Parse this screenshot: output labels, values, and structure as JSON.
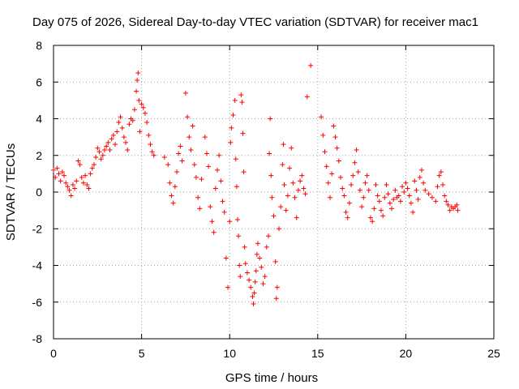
{
  "chart_data": {
    "type": "scatter",
    "title": "Day 075 of 2026, Sidereal Day-to-day VTEC variation (SDTVAR) for receiver mac1",
    "xlabel": "GPS time / hours",
    "ylabel": "SDTVAR / TECUs",
    "xlim": [
      0,
      25
    ],
    "ylim": [
      -8,
      8
    ],
    "xticks": [
      0,
      5,
      10,
      15,
      20,
      25
    ],
    "yticks": [
      -8,
      -6,
      -4,
      -2,
      0,
      2,
      4,
      6,
      8
    ],
    "grid": true,
    "marker": "+",
    "color": "#ff0000",
    "series": [
      {
        "name": "SDTVAR",
        "points": [
          [
            0.0,
            1.2
          ],
          [
            0.1,
            0.8
          ],
          [
            0.2,
            1.3
          ],
          [
            0.3,
            1.0
          ],
          [
            0.4,
            0.6
          ],
          [
            0.5,
            1.1
          ],
          [
            0.6,
            0.9
          ],
          [
            0.7,
            0.5
          ],
          [
            0.8,
            0.3
          ],
          [
            0.9,
            0.1
          ],
          [
            1.0,
            -0.2
          ],
          [
            1.1,
            0.4
          ],
          [
            1.2,
            0.2
          ],
          [
            1.3,
            0.6
          ],
          [
            1.4,
            1.7
          ],
          [
            1.5,
            1.5
          ],
          [
            1.6,
            0.8
          ],
          [
            1.7,
            0.5
          ],
          [
            1.8,
            0.9
          ],
          [
            1.9,
            0.4
          ],
          [
            2.0,
            0.2
          ],
          [
            2.1,
            1.0
          ],
          [
            2.2,
            1.3
          ],
          [
            2.3,
            1.5
          ],
          [
            2.4,
            1.9
          ],
          [
            2.5,
            2.4
          ],
          [
            2.6,
            2.2
          ],
          [
            2.7,
            1.8
          ],
          [
            2.8,
            2.0
          ],
          [
            2.9,
            2.3
          ],
          [
            3.0,
            2.5
          ],
          [
            3.1,
            2.7
          ],
          [
            3.2,
            2.3
          ],
          [
            3.3,
            2.9
          ],
          [
            3.4,
            3.1
          ],
          [
            3.5,
            2.6
          ],
          [
            3.6,
            3.3
          ],
          [
            3.7,
            3.8
          ],
          [
            3.8,
            4.1
          ],
          [
            3.9,
            3.5
          ],
          [
            4.0,
            3.0
          ],
          [
            4.1,
            2.7
          ],
          [
            4.2,
            2.3
          ],
          [
            4.3,
            3.7
          ],
          [
            4.4,
            4.0
          ],
          [
            4.5,
            3.9
          ],
          [
            4.6,
            4.5
          ],
          [
            4.7,
            5.5
          ],
          [
            4.75,
            6.1
          ],
          [
            4.8,
            6.5
          ],
          [
            4.85,
            5.0
          ],
          [
            4.9,
            3.3
          ],
          [
            5.0,
            4.8
          ],
          [
            5.1,
            4.6
          ],
          [
            5.2,
            4.3
          ],
          [
            5.3,
            3.8
          ],
          [
            5.4,
            3.1
          ],
          [
            5.5,
            2.6
          ],
          [
            5.6,
            2.2
          ],
          [
            5.7,
            2.0
          ],
          [
            6.3,
            1.9
          ],
          [
            6.5,
            1.5
          ],
          [
            6.6,
            0.5
          ],
          [
            6.7,
            -0.2
          ],
          [
            6.8,
            -0.6
          ],
          [
            6.9,
            0.3
          ],
          [
            7.0,
            1.1
          ],
          [
            7.1,
            2.1
          ],
          [
            7.2,
            2.5
          ],
          [
            7.3,
            1.7
          ],
          [
            7.5,
            5.4
          ],
          [
            7.6,
            4.1
          ],
          [
            7.7,
            3.0
          ],
          [
            7.8,
            2.3
          ],
          [
            7.9,
            3.6
          ],
          [
            8.0,
            1.5
          ],
          [
            8.1,
            0.8
          ],
          [
            8.2,
            -0.3
          ],
          [
            8.3,
            -0.9
          ],
          [
            8.4,
            0.7
          ],
          [
            8.6,
            3.0
          ],
          [
            8.7,
            2.1
          ],
          [
            8.8,
            1.4
          ],
          [
            8.9,
            -0.8
          ],
          [
            9.0,
            -1.6
          ],
          [
            9.1,
            -2.2
          ],
          [
            9.2,
            0.2
          ],
          [
            9.3,
            1.2
          ],
          [
            9.4,
            2.0
          ],
          [
            9.5,
            0.6
          ],
          [
            9.6,
            -0.5
          ],
          [
            9.7,
            -1.1
          ],
          [
            9.8,
            -3.6
          ],
          [
            9.9,
            -5.2
          ],
          [
            10.0,
            -1.6
          ],
          [
            10.05,
            2.7
          ],
          [
            10.1,
            3.5
          ],
          [
            10.2,
            4.2
          ],
          [
            10.3,
            5.0
          ],
          [
            10.35,
            1.8
          ],
          [
            10.4,
            0.3
          ],
          [
            10.45,
            -1.5
          ],
          [
            10.5,
            -2.4
          ],
          [
            10.55,
            -4.0
          ],
          [
            10.6,
            -4.6
          ],
          [
            10.65,
            5.3
          ],
          [
            10.7,
            4.9
          ],
          [
            10.75,
            3.2
          ],
          [
            10.8,
            1.1
          ],
          [
            10.85,
            -3.0
          ],
          [
            10.9,
            -3.9
          ],
          [
            11.0,
            -4.4
          ],
          [
            11.1,
            -4.8
          ],
          [
            11.2,
            -5.2
          ],
          [
            11.3,
            -5.7
          ],
          [
            11.35,
            -6.1
          ],
          [
            11.4,
            -5.5
          ],
          [
            11.45,
            -4.9
          ],
          [
            11.5,
            -4.3
          ],
          [
            11.55,
            -3.4
          ],
          [
            11.6,
            -2.8
          ],
          [
            11.7,
            -3.6
          ],
          [
            11.8,
            -4.1
          ],
          [
            11.9,
            -5.0
          ],
          [
            12.0,
            -4.6
          ],
          [
            12.1,
            -3.0
          ],
          [
            12.2,
            -2.4
          ],
          [
            12.25,
            2.1
          ],
          [
            12.3,
            4.0
          ],
          [
            12.35,
            0.9
          ],
          [
            12.4,
            -0.3
          ],
          [
            12.5,
            -1.3
          ],
          [
            12.6,
            -3.8
          ],
          [
            12.65,
            -5.8
          ],
          [
            12.7,
            -5.2
          ],
          [
            12.8,
            -2.0
          ],
          [
            12.9,
            -0.8
          ],
          [
            13.0,
            1.5
          ],
          [
            13.05,
            2.6
          ],
          [
            13.1,
            0.4
          ],
          [
            13.2,
            -1.0
          ],
          [
            13.3,
            -0.2
          ],
          [
            13.4,
            1.3
          ],
          [
            13.5,
            2.4
          ],
          [
            13.6,
            0.5
          ],
          [
            13.7,
            -0.3
          ],
          [
            13.8,
            -1.4
          ],
          [
            13.9,
            0.1
          ],
          [
            14.0,
            0.6
          ],
          [
            14.1,
            0.9
          ],
          [
            14.2,
            0.2
          ],
          [
            14.3,
            -0.1
          ],
          [
            14.4,
            5.2
          ],
          [
            14.6,
            6.9
          ],
          [
            15.2,
            4.1
          ],
          [
            15.3,
            3.1
          ],
          [
            15.4,
            2.2
          ],
          [
            15.5,
            1.4
          ],
          [
            15.6,
            0.5
          ],
          [
            15.7,
            -0.3
          ],
          [
            15.8,
            1.0
          ],
          [
            15.9,
            3.6
          ],
          [
            16.0,
            3.0
          ],
          [
            16.1,
            2.4
          ],
          [
            16.2,
            1.7
          ],
          [
            16.3,
            0.8
          ],
          [
            16.4,
            0.2
          ],
          [
            16.5,
            -0.2
          ],
          [
            16.6,
            -1.1
          ],
          [
            16.7,
            -1.4
          ],
          [
            16.8,
            -0.6
          ],
          [
            16.9,
            0.4
          ],
          [
            17.0,
            0.9
          ],
          [
            17.1,
            1.6
          ],
          [
            17.2,
            2.3
          ],
          [
            17.3,
            1.1
          ],
          [
            17.4,
            0.1
          ],
          [
            17.5,
            -0.8
          ],
          [
            17.6,
            -0.3
          ],
          [
            17.7,
            0.5
          ],
          [
            17.8,
            0.9
          ],
          [
            17.9,
            0.1
          ],
          [
            18.0,
            -1.4
          ],
          [
            18.1,
            -1.6
          ],
          [
            18.2,
            -0.9
          ],
          [
            18.3,
            0.4
          ],
          [
            18.4,
            -0.2
          ],
          [
            18.5,
            -0.5
          ],
          [
            18.6,
            -1.0
          ],
          [
            18.7,
            -1.3
          ],
          [
            18.8,
            -0.3
          ],
          [
            18.9,
            0.4
          ],
          [
            19.0,
            -0.1
          ],
          [
            19.1,
            -0.6
          ],
          [
            19.2,
            -0.9
          ],
          [
            19.3,
            -0.4
          ],
          [
            19.4,
            0.1
          ],
          [
            19.5,
            -0.3
          ],
          [
            19.6,
            -0.2
          ],
          [
            19.7,
            -0.5
          ],
          [
            19.8,
            0.3
          ],
          [
            19.9,
            0.0
          ],
          [
            20.0,
            0.5
          ],
          [
            20.1,
            0.2
          ],
          [
            20.2,
            -0.2
          ],
          [
            20.3,
            -0.6
          ],
          [
            20.4,
            -1.1
          ],
          [
            20.5,
            0.6
          ],
          [
            20.6,
            0.1
          ],
          [
            20.7,
            -0.4
          ],
          [
            20.8,
            0.8
          ],
          [
            20.9,
            1.2
          ],
          [
            21.0,
            0.5
          ],
          [
            21.1,
            0.1
          ],
          [
            21.3,
            -0.1
          ],
          [
            21.5,
            -0.3
          ],
          [
            21.7,
            -0.5
          ],
          [
            21.8,
            0.3
          ],
          [
            21.9,
            0.9
          ],
          [
            22.0,
            1.1
          ],
          [
            22.1,
            0.4
          ],
          [
            22.2,
            -0.2
          ],
          [
            22.3,
            -0.5
          ],
          [
            22.4,
            -0.7
          ],
          [
            22.5,
            -1.0
          ],
          [
            22.6,
            -0.8
          ],
          [
            22.7,
            -0.9
          ],
          [
            22.8,
            -0.8
          ],
          [
            22.9,
            -0.7
          ],
          [
            22.95,
            -1.0
          ]
        ]
      }
    ]
  }
}
